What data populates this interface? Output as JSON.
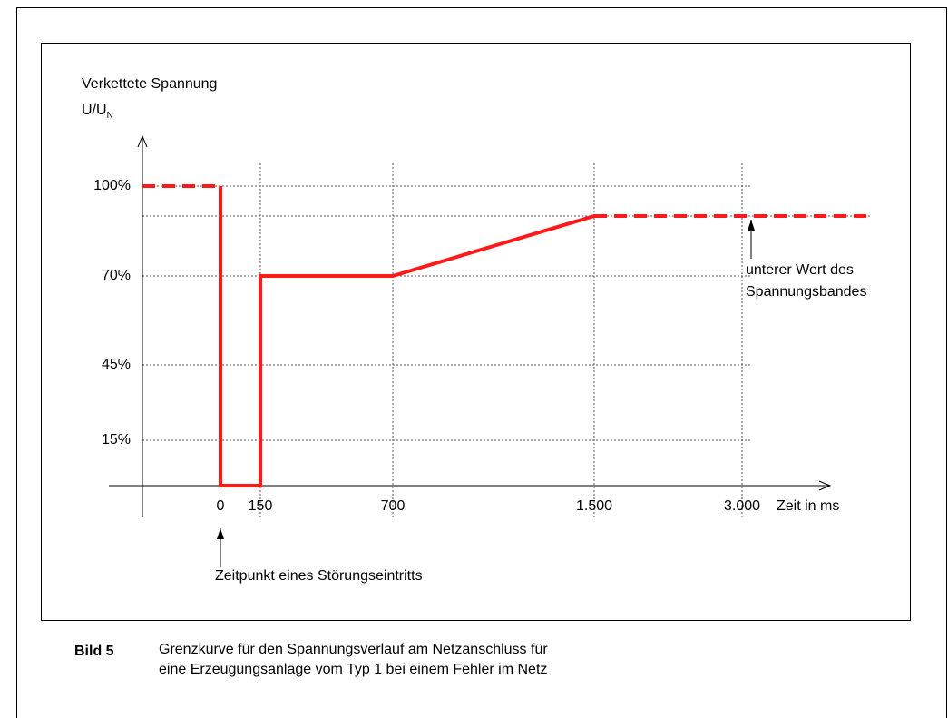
{
  "axes": {
    "y_title": "Verkettete Spannung",
    "y_unit": "U/U",
    "y_unit_sub": "N",
    "y_labels": [
      "100%",
      "70%",
      "45%",
      "15%"
    ],
    "x_labels": [
      "0",
      "150",
      "700",
      "1.500",
      "3.000"
    ],
    "x_title": "Zeit in ms"
  },
  "annotations": {
    "fault": "Zeitpunkt eines Störungseintritts",
    "band_line1": "unterer Wert des",
    "band_line2": "Spannungsbandes"
  },
  "caption": {
    "label": "Bild 5",
    "line1": "Grenzkurve für den Spannungsverlauf am Netzanschluss für",
    "line2": "eine Erzeugungsanlage vom Typ 1 bei einem Fehler im Netz"
  }
}
